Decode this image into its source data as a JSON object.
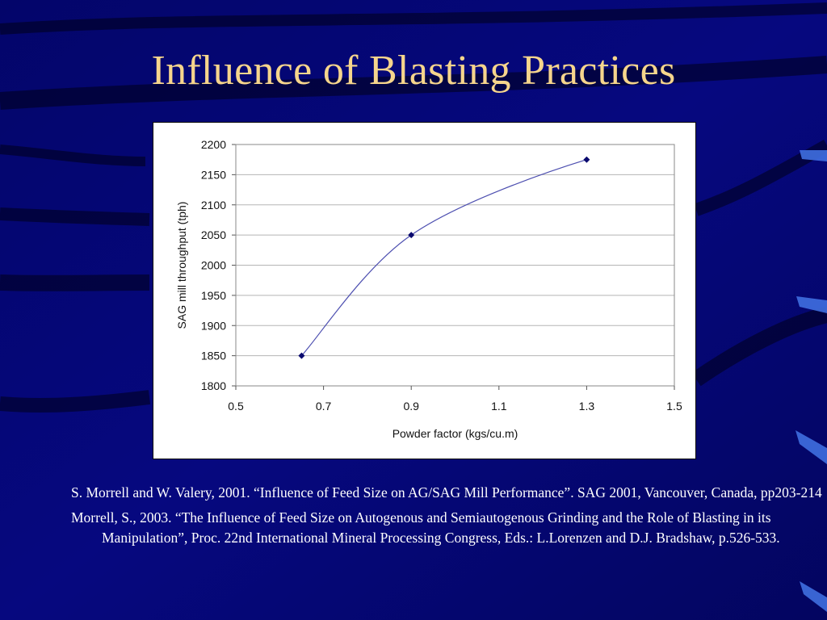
{
  "slide": {
    "title": "Influence of Blasting Practices",
    "title_color": "#f6d58c",
    "background_color": "#04067a"
  },
  "references": [
    "S. Morrell and W. Valery, 2001. “Influence of Feed Size on AG/SAG Mill Performance”. SAG 2001, Vancouver, Canada, pp203-214",
    "Morrell, S., 2003. “The Influence of Feed Size on Autogenous and Semiautogenous Grinding and the Role of Blasting in its Manipulation”, Proc. 22nd International Mineral Processing Congress, Eds.: L.Lorenzen and D.J. Bradshaw, p.526-533."
  ],
  "chart_data": {
    "type": "scatter",
    "title": "",
    "xlabel": "Powder factor (kgs/cu.m)",
    "ylabel": "SAG mill throughput (tph)",
    "xlim": [
      0.5,
      1.5
    ],
    "ylim": [
      1800,
      2200
    ],
    "xticks": [
      "0.5",
      "0.7",
      "0.9",
      "1.1",
      "1.3",
      "1.5"
    ],
    "yticks": [
      "1800",
      "1850",
      "1900",
      "1950",
      "2000",
      "2050",
      "2100",
      "2150",
      "2200"
    ],
    "series": [
      {
        "x": [
          0.65,
          0.9,
          1.3
        ],
        "y": [
          1850,
          2050,
          2175
        ],
        "marker": "diamond",
        "color": "#0a0a6e",
        "line": "smooth"
      }
    ],
    "grid": "horizontal"
  }
}
